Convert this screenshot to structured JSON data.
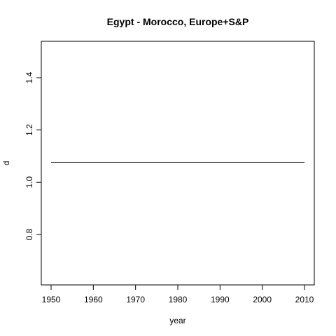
{
  "chart_data": {
    "type": "line",
    "title": "Egypt - Morocco, Europe+S&P",
    "xlabel": "year",
    "ylabel": "d",
    "xlim": [
      1950,
      2010
    ],
    "ylim": [
      0.615,
      1.535
    ],
    "x_ticks": [
      1950,
      1960,
      1970,
      1980,
      1990,
      2000,
      2010
    ],
    "x_tick_labels": [
      "1950",
      "1960",
      "1970",
      "1980",
      "1990",
      "2000",
      "2010"
    ],
    "y_ticks": [
      0.8,
      1.0,
      1.2,
      1.4
    ],
    "y_tick_labels": [
      "0.8",
      "1.0",
      "1.2",
      "1.4"
    ],
    "grid": false,
    "series": [
      {
        "color": "#000000",
        "x": [
          1950,
          1960,
          1970,
          1980,
          1990,
          2000,
          2010
        ],
        "y": [
          1.075,
          1.075,
          1.075,
          1.075,
          1.075,
          1.075,
          1.075
        ]
      }
    ]
  }
}
